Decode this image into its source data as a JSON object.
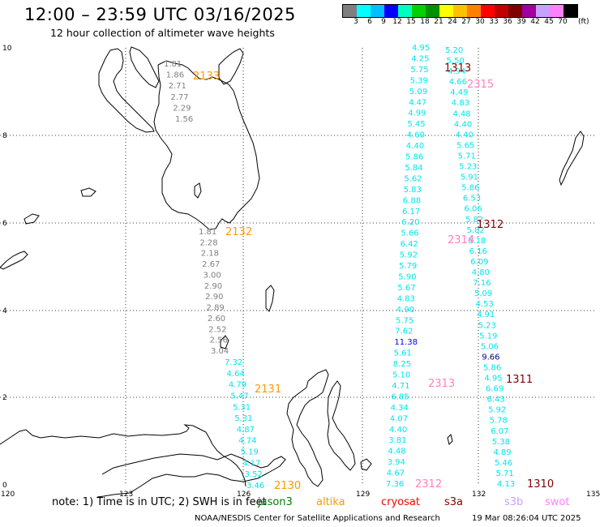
{
  "title": "12:00 – 23:59 UTC 03/16/2025",
  "subtitle": "12 hour collection of altimeter wave heights",
  "colorbar": {
    "colors": [
      "#7f7f7f",
      "#00ffff",
      "#00bfff",
      "#0000ff",
      "#00ffbf",
      "#00d000",
      "#009000",
      "#ffff00",
      "#ffc000",
      "#ff8000",
      "#ff0000",
      "#c00000",
      "#800000",
      "#a000a0",
      "#c8a0ff",
      "#ff80ff",
      "#000000"
    ],
    "labels": [
      "3",
      "6",
      "9",
      "12",
      "15",
      "18",
      "21",
      "24",
      "27",
      "30",
      "33",
      "36",
      "39",
      "42",
      "45",
      "70"
    ],
    "unit": "(ft)"
  },
  "axes": {
    "lon_labels": [
      "120",
      "123",
      "126",
      "129",
      "132",
      "135"
    ],
    "lat_labels": [
      "0",
      "2",
      "4",
      "6",
      "8",
      "10"
    ]
  },
  "tracks": [
    {
      "id": "2133",
      "color": "#808080",
      "label_color": "#ff9900",
      "values": [
        "1.81",
        "1.86",
        "2.71",
        "2.77",
        "2.29",
        "1.56"
      ]
    },
    {
      "id": "2132",
      "color": "#808080",
      "label_color": "#ff9900",
      "values": [
        "1.81",
        "2.28",
        "2.18",
        "2.67",
        "3.00",
        "2.90",
        "2.90",
        "2.89",
        "2.60",
        "2.52",
        "2.56",
        "3.04"
      ]
    },
    {
      "id": "2131",
      "color": "#00e5ee",
      "label_color": "#ff9900",
      "values": [
        "7.32",
        "4.64",
        "4.79",
        "5.47",
        "5.31",
        "5.31",
        "4.87",
        "4.74",
        "5.19",
        "4.17",
        "3.52",
        "3.46"
      ]
    },
    {
      "id": "2130",
      "color": "#808080",
      "label_color": "#ff9900",
      "values": []
    },
    {
      "id": "2315",
      "color": "#00e5ee",
      "label_color": "#ff80c0",
      "values": [
        "4.95",
        "4.25",
        "5.75",
        "5.39",
        "5.09",
        "4.47",
        "4.99",
        "5.45",
        "4.60",
        "4.40",
        "5.86",
        "5.84",
        "5.62",
        "5.83",
        "6.88",
        "6.17",
        "6.20",
        "5.66",
        "6.42",
        "5.92",
        "5.79",
        "5.90",
        "5.67",
        "4.83",
        "4.90",
        "5.75",
        "7.62",
        "11.38",
        "5.61",
        "8.25",
        "5.10",
        "4.71",
        "6.85",
        "4.34",
        "4.07",
        "4.40",
        "3.81",
        "4.48",
        "3.94",
        "4.67",
        "7.36"
      ]
    },
    {
      "id": "1313",
      "color": "#00e5ee",
      "label_color": "#800000",
      "values": [
        "5.20",
        "5.50",
        "4.94",
        "4.66",
        "4.49",
        "4.83",
        "4.48",
        "4.40",
        "4.40",
        "5.65",
        "5.71",
        "5.23",
        "5.91",
        "5.86",
        "6.53",
        "6.06",
        "5.82",
        "5.82",
        "5.18",
        "6.16",
        "6.09",
        "4.80",
        "7.16",
        "5.09",
        "4.53",
        "4.91",
        "5.23",
        "5.19",
        "5.06",
        "9.66",
        "5.86",
        "4.95",
        "6.69",
        "6.43",
        "5.92",
        "5.78",
        "6.07",
        "5.38",
        "4.89",
        "5.46",
        "5.71",
        "4.13"
      ]
    },
    {
      "id": "2314",
      "label_color": "#ff80c0"
    },
    {
      "id": "2313",
      "label_color": "#ff80c0"
    },
    {
      "id": "2312",
      "label_color": "#ff80c0"
    },
    {
      "id": "1312",
      "label_color": "#800000"
    },
    {
      "id": "1311",
      "label_color": "#800000"
    },
    {
      "id": "1310",
      "label_color": "#800000"
    }
  ],
  "note": "note:  1) Time is in UTC; 2) SWH is in feet",
  "legend": [
    {
      "name": "jason3",
      "color": "#008000"
    },
    {
      "name": "altika",
      "color": "#ff9900"
    },
    {
      "name": "cryosat",
      "color": "#ff0000"
    },
    {
      "name": "s3a",
      "color": "#800000"
    },
    {
      "name": "s3b",
      "color": "#c8a0ff"
    },
    {
      "name": "swot",
      "color": "#ff80ff"
    }
  ],
  "footer": "NOAA/NESDIS Center for Satellite Applications and Research",
  "footer_time": "19 Mar 08:26:04 UTC 2025"
}
